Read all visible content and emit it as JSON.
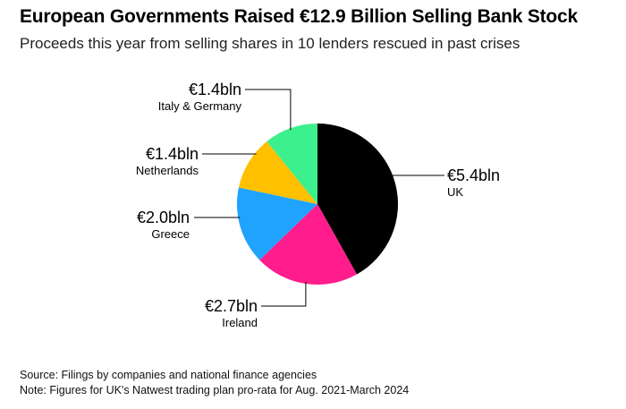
{
  "title": "European Governments Raised €12.9 Billion Selling Bank Stock",
  "subtitle": "Proceeds this year from selling shares in 10 lenders rescued in past crises",
  "source": "Source: Filings by companies and national finance agencies",
  "note": "Note: Figures for UK's Natwest trading plan pro-rata for Aug. 2021-March 2024",
  "chart_data": {
    "type": "pie",
    "title": "European Governments Raised €12.9 Billion Selling Bank Stock",
    "unit": "€ billion",
    "slices": [
      {
        "name": "UK",
        "value": 5.4,
        "value_label": "€5.4bln",
        "color": "#000000"
      },
      {
        "name": "Ireland",
        "value": 2.7,
        "value_label": "€2.7bln",
        "color": "#ff1c8d"
      },
      {
        "name": "Greece",
        "value": 2.0,
        "value_label": "€2.0bln",
        "color": "#1fa3ff"
      },
      {
        "name": "Netherlands",
        "value": 1.4,
        "value_label": "€1.4bln",
        "color": "#ffc000"
      },
      {
        "name": "Italy & Germany",
        "value": 1.4,
        "value_label": "€1.4bln",
        "color": "#3df08e"
      }
    ]
  }
}
